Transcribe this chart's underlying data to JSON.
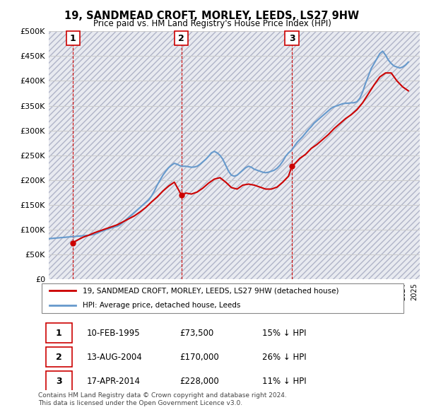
{
  "title": "19, SANDMEAD CROFT, MORLEY, LEEDS, LS27 9HW",
  "subtitle": "Price paid vs. HM Land Registry's House Price Index (HPI)",
  "sale_dates": [
    "1995-02-10",
    "2004-08-13",
    "2014-04-17"
  ],
  "sale_prices": [
    73500,
    170000,
    228000
  ],
  "sale_labels": [
    "1",
    "2",
    "3"
  ],
  "sale_pct_below": [
    "15%",
    "26%",
    "11%"
  ],
  "legend_line1": "19, SANDMEAD CROFT, MORLEY, LEEDS, LS27 9HW (detached house)",
  "legend_line2": "HPI: Average price, detached house, Leeds",
  "table_rows": [
    [
      "1",
      "10-FEB-1995",
      "£73,500",
      "15% ↓ HPI"
    ],
    [
      "2",
      "13-AUG-2004",
      "£170,000",
      "26% ↓ HPI"
    ],
    [
      "3",
      "17-APR-2014",
      "£228,000",
      "11% ↓ HPI"
    ]
  ],
  "footnote": "Contains HM Land Registry data © Crown copyright and database right 2024.\nThis data is licensed under the Open Government Licence v3.0.",
  "ylim": [
    0,
    500000
  ],
  "yticks": [
    0,
    50000,
    100000,
    150000,
    200000,
    250000,
    300000,
    350000,
    400000,
    450000,
    500000
  ],
  "xlim_start": 1993.0,
  "xlim_end": 2025.5,
  "red_color": "#cc0000",
  "blue_color": "#6699cc",
  "bg_hatch_color": "#e8e8f0",
  "grid_color": "#cccccc",
  "hpi_data_x": [
    1993.0,
    1993.25,
    1993.5,
    1993.75,
    1994.0,
    1994.25,
    1994.5,
    1994.75,
    1995.0,
    1995.25,
    1995.5,
    1995.75,
    1996.0,
    1996.25,
    1996.5,
    1996.75,
    1997.0,
    1997.25,
    1997.5,
    1997.75,
    1998.0,
    1998.25,
    1998.5,
    1998.75,
    1999.0,
    1999.25,
    1999.5,
    1999.75,
    2000.0,
    2000.25,
    2000.5,
    2000.75,
    2001.0,
    2001.25,
    2001.5,
    2001.75,
    2002.0,
    2002.25,
    2002.5,
    2002.75,
    2003.0,
    2003.25,
    2003.5,
    2003.75,
    2004.0,
    2004.25,
    2004.5,
    2004.75,
    2005.0,
    2005.25,
    2005.5,
    2005.75,
    2006.0,
    2006.25,
    2006.5,
    2006.75,
    2007.0,
    2007.25,
    2007.5,
    2007.75,
    2008.0,
    2008.25,
    2008.5,
    2008.75,
    2009.0,
    2009.25,
    2009.5,
    2009.75,
    2010.0,
    2010.25,
    2010.5,
    2010.75,
    2011.0,
    2011.25,
    2011.5,
    2011.75,
    2012.0,
    2012.25,
    2012.5,
    2012.75,
    2013.0,
    2013.25,
    2013.5,
    2013.75,
    2014.0,
    2014.25,
    2014.5,
    2014.75,
    2015.0,
    2015.25,
    2015.5,
    2015.75,
    2016.0,
    2016.25,
    2016.5,
    2016.75,
    2017.0,
    2017.25,
    2017.5,
    2017.75,
    2018.0,
    2018.25,
    2018.5,
    2018.75,
    2019.0,
    2019.25,
    2019.5,
    2019.75,
    2020.0,
    2020.25,
    2020.5,
    2020.75,
    2021.0,
    2021.25,
    2021.5,
    2021.75,
    2022.0,
    2022.25,
    2022.5,
    2022.75,
    2023.0,
    2023.25,
    2023.5,
    2023.75,
    2024.0,
    2024.25,
    2024.5
  ],
  "hpi_data_y": [
    82000,
    82500,
    83000,
    83500,
    84000,
    84500,
    85000,
    85500,
    86000,
    86500,
    87000,
    87500,
    88000,
    88500,
    89000,
    89800,
    91000,
    93000,
    96000,
    98000,
    100000,
    102000,
    104000,
    105500,
    107000,
    110000,
    115000,
    120000,
    125000,
    130000,
    135000,
    140000,
    145000,
    150000,
    155000,
    160000,
    168000,
    178000,
    190000,
    200000,
    210000,
    218000,
    225000,
    230000,
    234000,
    232000,
    229000,
    228000,
    228000,
    227000,
    226000,
    226500,
    228000,
    232000,
    237000,
    242000,
    248000,
    255000,
    258000,
    255000,
    250000,
    242000,
    230000,
    218000,
    210000,
    208000,
    210000,
    215000,
    220000,
    225000,
    228000,
    226000,
    222000,
    220000,
    218000,
    216000,
    215000,
    216000,
    218000,
    220000,
    224000,
    230000,
    238000,
    248000,
    255000,
    260000,
    268000,
    276000,
    282000,
    288000,
    295000,
    302000,
    308000,
    315000,
    320000,
    325000,
    330000,
    335000,
    340000,
    345000,
    348000,
    350000,
    352000,
    354000,
    355000,
    355000,
    356000,
    356000,
    358000,
    365000,
    378000,
    395000,
    410000,
    425000,
    435000,
    445000,
    455000,
    460000,
    452000,
    442000,
    435000,
    430000,
    428000,
    426000,
    428000,
    432000,
    438000
  ],
  "red_line_x": [
    1995.12,
    1995.25,
    1995.5,
    1995.75,
    1996.0,
    1996.5,
    1997.0,
    1997.5,
    1998.0,
    1998.5,
    1999.0,
    1999.5,
    2000.0,
    2000.5,
    2001.0,
    2001.5,
    2002.0,
    2002.5,
    2003.0,
    2003.5,
    2004.0,
    2004.62,
    2004.75,
    2005.0,
    2005.5,
    2006.0,
    2006.5,
    2007.0,
    2007.5,
    2008.0,
    2008.5,
    2009.0,
    2009.5,
    2010.0,
    2010.5,
    2011.0,
    2011.5,
    2012.0,
    2012.5,
    2013.0,
    2013.5,
    2014.0,
    2014.3,
    2014.5,
    2015.0,
    2015.5,
    2016.0,
    2016.5,
    2017.0,
    2017.5,
    2018.0,
    2018.5,
    2019.0,
    2019.5,
    2020.0,
    2020.5,
    2021.0,
    2021.5,
    2022.0,
    2022.5,
    2023.0,
    2023.5,
    2024.0,
    2024.5
  ],
  "red_line_y": [
    73500,
    76000,
    79000,
    82000,
    85000,
    89000,
    94000,
    98000,
    102000,
    106000,
    110000,
    116000,
    122000,
    128000,
    136000,
    145000,
    156000,
    166000,
    178000,
    188000,
    196000,
    170000,
    170000,
    174000,
    172000,
    176000,
    184000,
    194000,
    202000,
    205000,
    196000,
    185000,
    182000,
    190000,
    192000,
    190000,
    186000,
    182000,
    182000,
    186000,
    196000,
    208000,
    228000,
    232000,
    244000,
    252000,
    264000,
    272000,
    282000,
    292000,
    304000,
    314000,
    324000,
    332000,
    342000,
    356000,
    374000,
    392000,
    408000,
    416000,
    416000,
    400000,
    388000,
    380000
  ]
}
